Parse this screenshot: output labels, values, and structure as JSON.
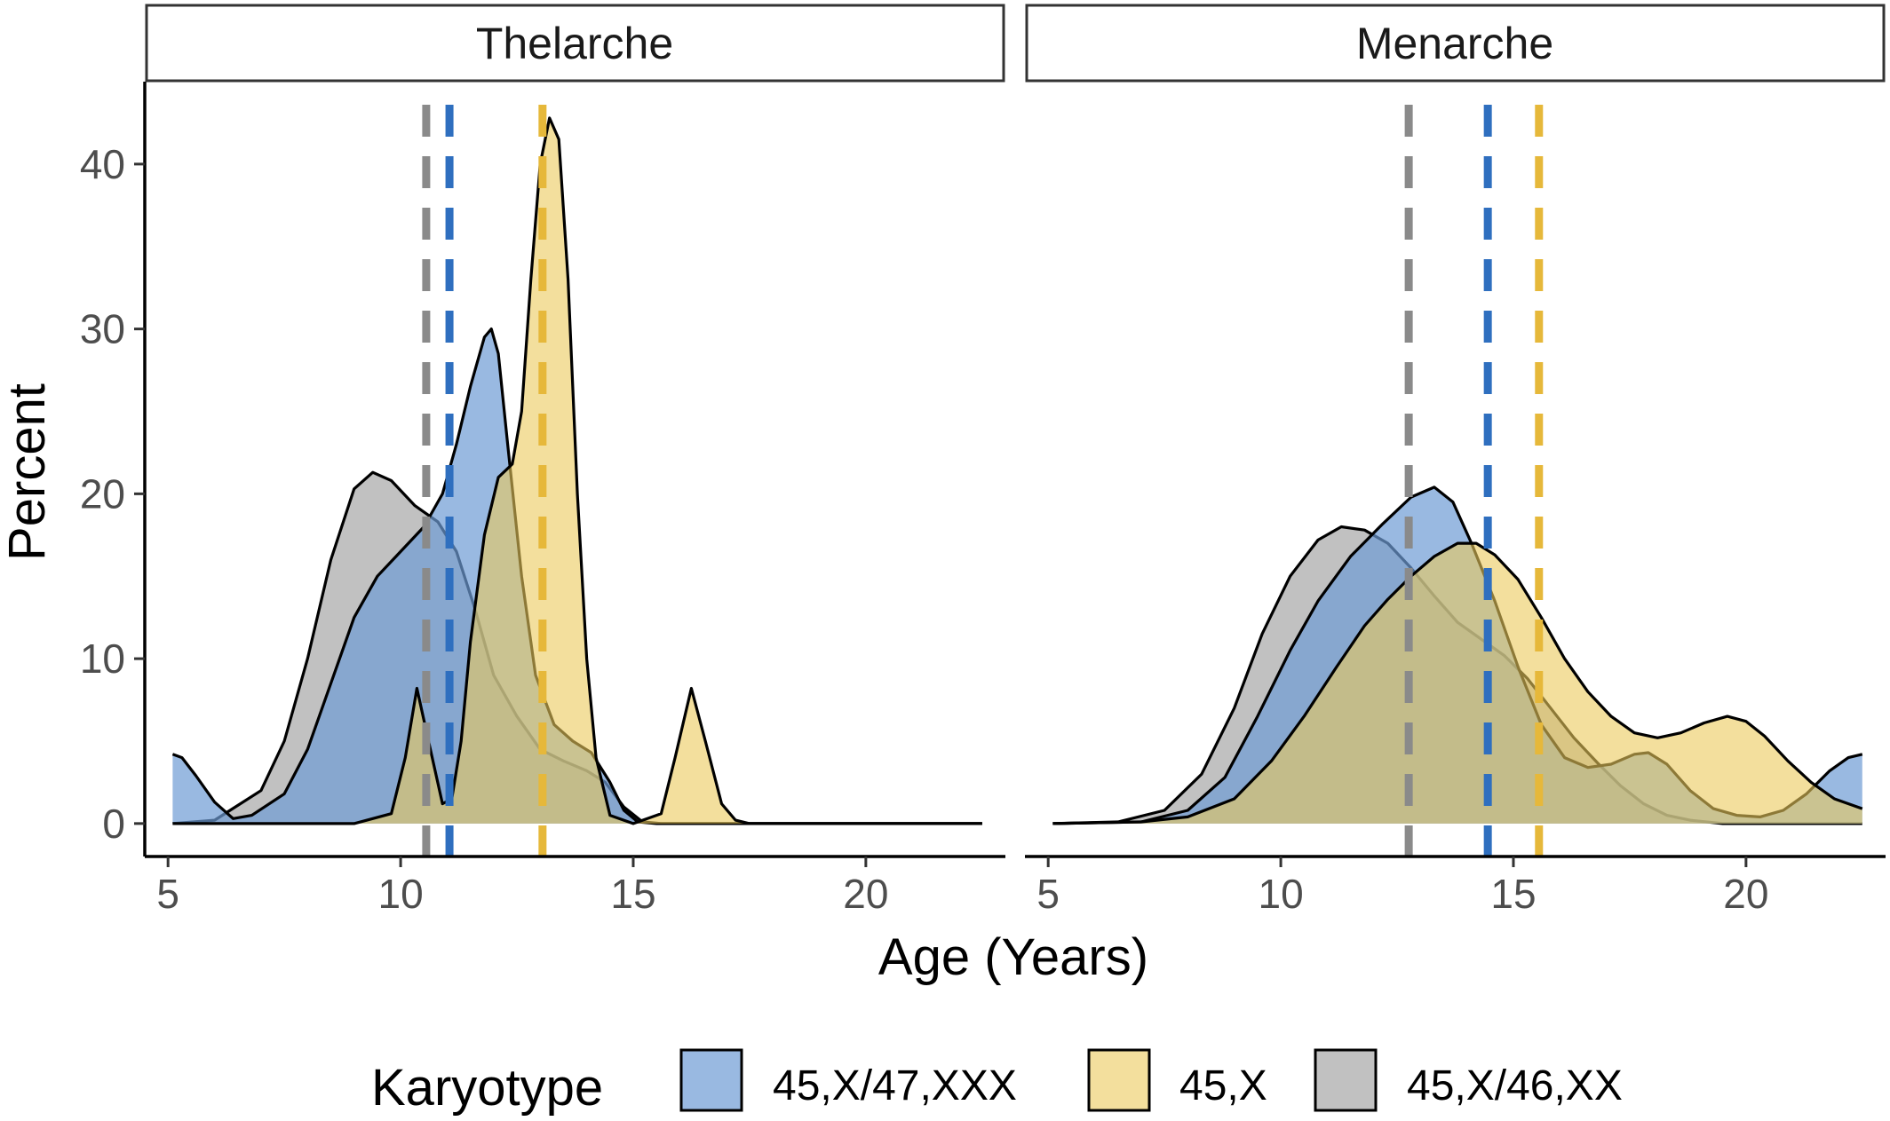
{
  "chart_data": {
    "type": "area",
    "ylabel": "Percent",
    "xlabel": "Age (Years)",
    "xlim": [
      4.5,
      23.0
    ],
    "ylim": [
      -2,
      45
    ],
    "x_ticks": [
      5,
      10,
      15,
      20
    ],
    "y_ticks": [
      0,
      10,
      20,
      30,
      40
    ],
    "grid": false,
    "legend": {
      "title": "Karyotype",
      "position": "bottom",
      "entries": [
        "45,X/47,XXX",
        "45,X",
        "45,X/46,XX"
      ]
    },
    "colors": {
      "45,X/47,XXX": {
        "fill": "#6e9bd4",
        "line": "#2f6fbf"
      },
      "45,X": {
        "fill": "#ebc95c",
        "line": "#e6b83a"
      },
      "45,X/46,XX": {
        "fill": "#a6a6a6",
        "line": "#8a8a8a"
      }
    },
    "panels": [
      {
        "title": "Thelarche",
        "series": [
          {
            "name": "45,X/46,XX",
            "points": [
              [
                5.1,
                0
              ],
              [
                6,
                0.2
              ],
              [
                7,
                2
              ],
              [
                7.5,
                5
              ],
              [
                8,
                10
              ],
              [
                8.5,
                16
              ],
              [
                9,
                20.3
              ],
              [
                9.4,
                21.3
              ],
              [
                9.8,
                20.8
              ],
              [
                10.3,
                19.3
              ],
              [
                10.8,
                18.3
              ],
              [
                11.2,
                16.5
              ],
              [
                11.6,
                13
              ],
              [
                12,
                9
              ],
              [
                12.5,
                6.5
              ],
              [
                13,
                4.5
              ],
              [
                13.5,
                3.8
              ],
              [
                14,
                3.2
              ],
              [
                14.4,
                2.5
              ],
              [
                14.8,
                1
              ],
              [
                15.2,
                0.1
              ],
              [
                15.6,
                0
              ],
              [
                22.5,
                0
              ]
            ]
          },
          {
            "name": "45,X/47,XXX",
            "points": [
              [
                5.1,
                4.2
              ],
              [
                5.3,
                4.0
              ],
              [
                5.6,
                2.9
              ],
              [
                6,
                1.3
              ],
              [
                6.4,
                0.3
              ],
              [
                6.8,
                0.5
              ],
              [
                7.5,
                1.8
              ],
              [
                8,
                4.5
              ],
              [
                8.5,
                8.5
              ],
              [
                9,
                12.5
              ],
              [
                9.5,
                15
              ],
              [
                10,
                16.5
              ],
              [
                10.5,
                18
              ],
              [
                10.9,
                20
              ],
              [
                11.2,
                23
              ],
              [
                11.5,
                26.5
              ],
              [
                11.8,
                29.5
              ],
              [
                11.95,
                30
              ],
              [
                12.1,
                28.5
              ],
              [
                12.3,
                23
              ],
              [
                12.6,
                15
              ],
              [
                12.9,
                9
              ],
              [
                13.3,
                6
              ],
              [
                13.7,
                5
              ],
              [
                14.1,
                4.3
              ],
              [
                14.5,
                2.5
              ],
              [
                14.8,
                0.8
              ],
              [
                15.1,
                0.1
              ],
              [
                15.5,
                0
              ],
              [
                22.5,
                0
              ]
            ]
          },
          {
            "name": "45,X",
            "points": [
              [
                5.1,
                0
              ],
              [
                9,
                0
              ],
              [
                9.8,
                0.6
              ],
              [
                10.1,
                4
              ],
              [
                10.35,
                8.2
              ],
              [
                10.6,
                5
              ],
              [
                10.9,
                1.2
              ],
              [
                11.1,
                1.5
              ],
              [
                11.3,
                5
              ],
              [
                11.5,
                11
              ],
              [
                11.8,
                17.5
              ],
              [
                12.1,
                21
              ],
              [
                12.4,
                21.8
              ],
              [
                12.6,
                25
              ],
              [
                12.8,
                33
              ],
              [
                13.0,
                40
              ],
              [
                13.2,
                42.8
              ],
              [
                13.4,
                41.5
              ],
              [
                13.6,
                33
              ],
              [
                13.8,
                20
              ],
              [
                14.0,
                10
              ],
              [
                14.2,
                4
              ],
              [
                14.5,
                0.5
              ],
              [
                15,
                0
              ],
              [
                15.6,
                0.6
              ],
              [
                15.9,
                4
              ],
              [
                16.25,
                8.2
              ],
              [
                16.55,
                5
              ],
              [
                16.9,
                1.2
              ],
              [
                17.2,
                0.2
              ],
              [
                17.5,
                0
              ],
              [
                22.5,
                0
              ]
            ]
          }
        ],
        "mean_lines": [
          {
            "name": "45,X/46,XX",
            "x": 10.55
          },
          {
            "name": "45,X/47,XXX",
            "x": 11.05
          },
          {
            "name": "45,X",
            "x": 13.05
          }
        ]
      },
      {
        "title": "Menarche",
        "series": [
          {
            "name": "45,X/46,XX",
            "points": [
              [
                5.1,
                0
              ],
              [
                6.5,
                0.1
              ],
              [
                7.5,
                0.8
              ],
              [
                8.3,
                3
              ],
              [
                9,
                7
              ],
              [
                9.6,
                11.5
              ],
              [
                10.2,
                15
              ],
              [
                10.8,
                17.2
              ],
              [
                11.3,
                18
              ],
              [
                11.8,
                17.8
              ],
              [
                12.3,
                17
              ],
              [
                12.8,
                15.5
              ],
              [
                13.3,
                13.8
              ],
              [
                13.8,
                12.2
              ],
              [
                14.3,
                11.2
              ],
              [
                14.8,
                10.2
              ],
              [
                15.3,
                8.8
              ],
              [
                15.8,
                7
              ],
              [
                16.3,
                5.2
              ],
              [
                16.8,
                3.7
              ],
              [
                17.3,
                2.3
              ],
              [
                17.8,
                1.2
              ],
              [
                18.3,
                0.5
              ],
              [
                18.8,
                0.2
              ],
              [
                19.5,
                0
              ],
              [
                22.5,
                0
              ]
            ]
          },
          {
            "name": "45,X/47,XXX",
            "points": [
              [
                5.1,
                0
              ],
              [
                7,
                0.1
              ],
              [
                8,
                0.8
              ],
              [
                8.8,
                2.8
              ],
              [
                9.5,
                6.5
              ],
              [
                10.2,
                10.5
              ],
              [
                10.8,
                13.5
              ],
              [
                11.5,
                16.2
              ],
              [
                12.2,
                18.2
              ],
              [
                12.8,
                19.8
              ],
              [
                13.3,
                20.4
              ],
              [
                13.7,
                19.5
              ],
              [
                14.1,
                17
              ],
              [
                14.6,
                13.5
              ],
              [
                15.1,
                9.5
              ],
              [
                15.6,
                6
              ],
              [
                16.1,
                4
              ],
              [
                16.6,
                3.4
              ],
              [
                17.1,
                3.6
              ],
              [
                17.6,
                4.2
              ],
              [
                17.9,
                4.3
              ],
              [
                18.3,
                3.6
              ],
              [
                18.8,
                2
              ],
              [
                19.3,
                0.9
              ],
              [
                19.8,
                0.5
              ],
              [
                20.3,
                0.4
              ],
              [
                20.8,
                0.8
              ],
              [
                21.3,
                1.8
              ],
              [
                21.8,
                3.2
              ],
              [
                22.2,
                4
              ],
              [
                22.5,
                4.2
              ]
            ]
          },
          {
            "name": "45,X",
            "points": [
              [
                5.1,
                0
              ],
              [
                7,
                0.1
              ],
              [
                8,
                0.4
              ],
              [
                9,
                1.5
              ],
              [
                9.8,
                3.8
              ],
              [
                10.5,
                6.5
              ],
              [
                11.2,
                9.5
              ],
              [
                11.8,
                12
              ],
              [
                12.3,
                13.6
              ],
              [
                12.8,
                15
              ],
              [
                13.3,
                16.2
              ],
              [
                13.8,
                17
              ],
              [
                14.2,
                17
              ],
              [
                14.6,
                16.3
              ],
              [
                15.1,
                14.8
              ],
              [
                15.6,
                12.5
              ],
              [
                16.1,
                10
              ],
              [
                16.6,
                8
              ],
              [
                17.1,
                6.5
              ],
              [
                17.6,
                5.5
              ],
              [
                18.1,
                5.2
              ],
              [
                18.6,
                5.5
              ],
              [
                19.1,
                6.1
              ],
              [
                19.6,
                6.5
              ],
              [
                20.0,
                6.2
              ],
              [
                20.4,
                5.3
              ],
              [
                20.9,
                3.8
              ],
              [
                21.4,
                2.5
              ],
              [
                21.9,
                1.5
              ],
              [
                22.5,
                0.9
              ]
            ]
          }
        ],
        "mean_lines": [
          {
            "name": "45,X/46,XX",
            "x": 12.75
          },
          {
            "name": "45,X/47,XXX",
            "x": 14.45
          },
          {
            "name": "45,X",
            "x": 15.55
          }
        ]
      }
    ]
  }
}
